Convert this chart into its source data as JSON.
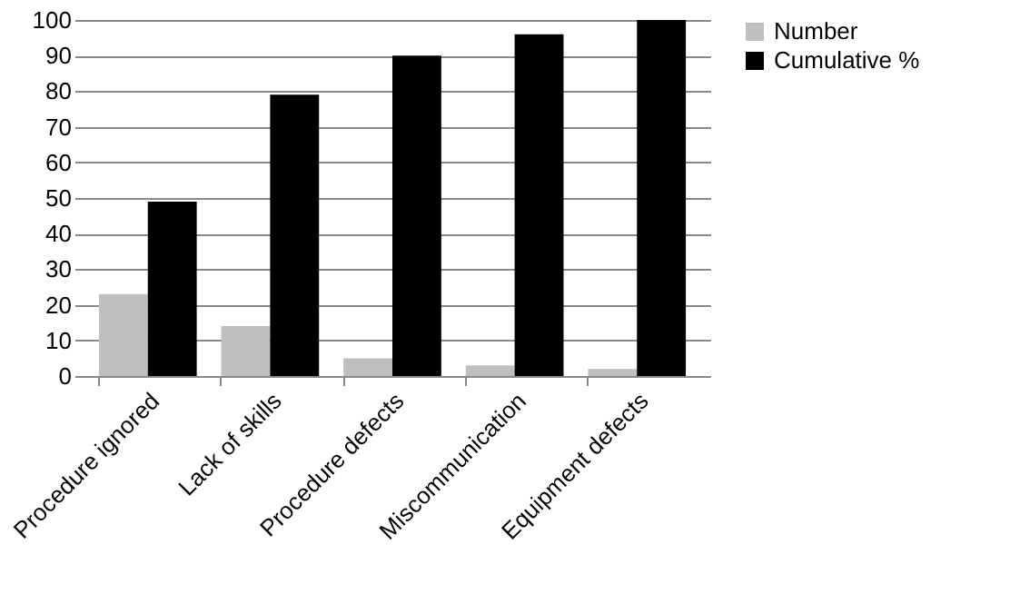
{
  "chart_data": {
    "type": "bar",
    "categories": [
      "Procedure ignored",
      "Lack of skills",
      "Procedure defects",
      "Miscommunication",
      "Equipment defects"
    ],
    "series": [
      {
        "name": "Number",
        "color": "#bfbfbf",
        "values": [
          23,
          14,
          5,
          3,
          2
        ]
      },
      {
        "name": "Cumulative %",
        "color": "#000000",
        "values": [
          49,
          79,
          90,
          96,
          100
        ]
      }
    ],
    "ylim": [
      0,
      100
    ],
    "yticks": [
      0,
      10,
      20,
      30,
      40,
      50,
      60,
      70,
      80,
      90,
      100
    ],
    "grid": "y",
    "legend": "right"
  }
}
